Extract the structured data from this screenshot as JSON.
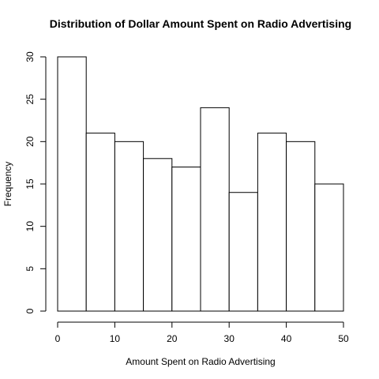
{
  "chart_data": {
    "type": "bar",
    "title": "Distribution of Dollar Amount Spent on Radio Advertising",
    "xlabel": "Amount Spent on Radio Advertising",
    "ylabel": "Frequency",
    "bins": [
      [
        0,
        5
      ],
      [
        5,
        10
      ],
      [
        10,
        15
      ],
      [
        15,
        20
      ],
      [
        20,
        25
      ],
      [
        25,
        30
      ],
      [
        30,
        35
      ],
      [
        35,
        40
      ],
      [
        40,
        45
      ],
      [
        45,
        50
      ]
    ],
    "values": [
      30,
      21,
      20,
      18,
      17,
      24,
      14,
      21,
      20,
      15
    ],
    "xlim": [
      0,
      50
    ],
    "ylim": [
      0,
      30
    ],
    "x_ticks": [
      "0",
      "10",
      "20",
      "30",
      "40",
      "50"
    ],
    "y_ticks": [
      "0",
      "5",
      "10",
      "15",
      "20",
      "25",
      "30"
    ],
    "grid": false
  },
  "colors": {
    "bar_fill": "#ffffff",
    "bar_stroke": "#000000"
  }
}
